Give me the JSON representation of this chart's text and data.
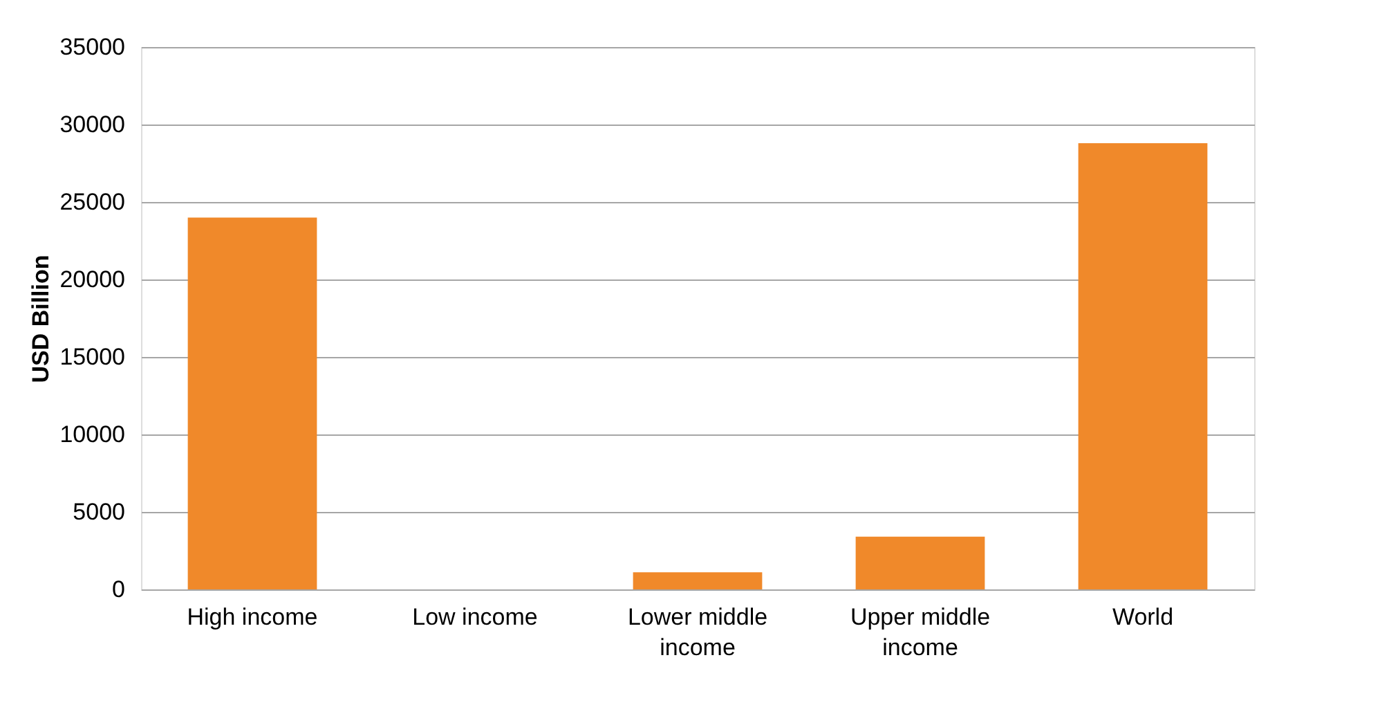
{
  "chart_data": {
    "type": "bar",
    "ylabel": "USD Billion",
    "categories": [
      "High income",
      "Low income",
      "Lower middle income",
      "Upper middle income",
      "World"
    ],
    "values": [
      24000,
      0,
      1100,
      3400,
      28800
    ],
    "color": "#f0892a",
    "ylim": [
      0,
      35000
    ],
    "yticks": [
      0,
      5000,
      10000,
      15000,
      20000,
      25000,
      30000,
      35000
    ],
    "grid": "y"
  }
}
